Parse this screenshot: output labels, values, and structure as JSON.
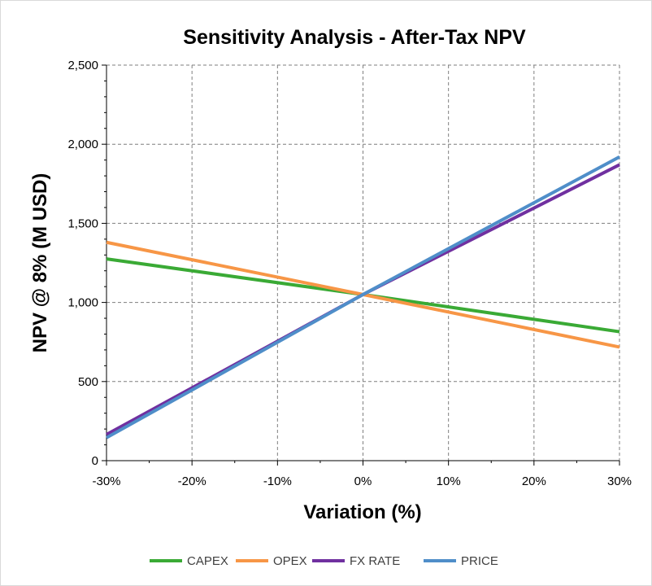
{
  "chart_data": {
    "type": "line",
    "title": "Sensitivity Analysis - After-Tax NPV",
    "xlabel": "Variation (%)",
    "ylabel": "NPV @ 8%  (M USD)",
    "x": [
      -30,
      0,
      30
    ],
    "x_tick_labels": [
      "-30%",
      "-20%",
      "-10%",
      "0%",
      "10%",
      "20%",
      "30%"
    ],
    "x_ticks": [
      -30,
      -20,
      -10,
      0,
      10,
      20,
      30
    ],
    "xlim": [
      -30,
      30
    ],
    "y_tick_labels": [
      "0",
      "500",
      "1,000",
      "1,500",
      "2,000",
      "2,500"
    ],
    "y_ticks": [
      0,
      500,
      1000,
      1500,
      2000,
      2500
    ],
    "ylim": [
      0,
      2500
    ],
    "grid": true,
    "legend_position": "bottom",
    "series": [
      {
        "name": "CAPEX",
        "color": "#3aaa35",
        "values": [
          1275,
          1050,
          815
        ]
      },
      {
        "name": "OPEX",
        "color": "#f79646",
        "values": [
          1380,
          1050,
          718
        ]
      },
      {
        "name": "FX RATE",
        "color": "#7030a0",
        "values": [
          165,
          1050,
          1870
        ]
      },
      {
        "name": "PRICE",
        "color": "#4f8ec9",
        "values": [
          145,
          1050,
          1920
        ]
      }
    ]
  }
}
